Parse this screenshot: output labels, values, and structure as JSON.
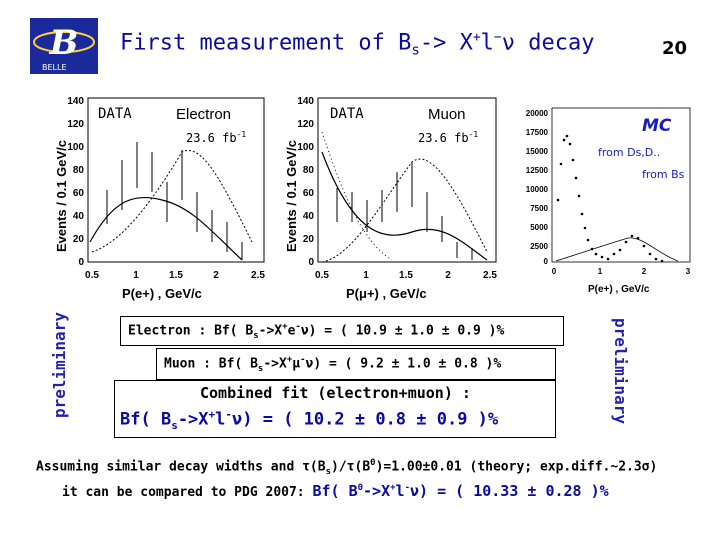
{
  "header": {
    "title_pre": "First measurement of  B",
    "title_sub": "s",
    "title_mid": "-> X",
    "title_sup1": "+",
    "title_l": "l",
    "title_sup2": "−",
    "title_post": "ν  decay",
    "slide_number": "20",
    "logo_text": "BELLE"
  },
  "panels": {
    "electron": {
      "data_label": "DATA",
      "channel": "Electron",
      "lumi": "23.6 fb",
      "lumi_sup": "-1",
      "y_axis_label": "Events / 0.1 GeV/c",
      "x_axis_label": "P(e+) ,  GeV/c",
      "y_ticks": [
        "140",
        "120",
        "100",
        "80",
        "60",
        "40",
        "20",
        "0"
      ],
      "x_ticks": [
        "0.5",
        "1",
        "1.5",
        "2",
        "2.5"
      ]
    },
    "muon": {
      "data_label": "DATA",
      "channel": "Muon",
      "lumi": "23.6 fb",
      "lumi_sup": "-1",
      "y_axis_label": "Events / 0.1 GeV/c",
      "x_axis_label": "P(μ+) ,  GeV/c",
      "y_ticks": [
        "140",
        "120",
        "100",
        "80",
        "60",
        "40",
        "20",
        "0"
      ],
      "x_ticks": [
        "0.5",
        "1",
        "1.5",
        "2",
        "2.5"
      ]
    },
    "mc": {
      "label": "MC",
      "from_ds": "from Ds,D..",
      "from_bs": "from Bs",
      "x_axis_label": "P(e+) ,  GeV/c",
      "y_ticks": [
        "20000",
        "17500",
        "15000",
        "12500",
        "10000",
        "7500",
        "5000",
        "2500",
        "0"
      ],
      "x_ticks": [
        "0",
        "1",
        "2",
        "3"
      ]
    }
  },
  "preliminary_left": "preliminary",
  "preliminary_right": "preliminary",
  "results": {
    "electron": {
      "prefix": "Electron :  Bf( B",
      "sub": "s",
      "mid": "->X",
      "sup1": "+",
      "lep": "e",
      "sup2": "-",
      "post": "ν) = ( 10.9 ± 1.0 ± 0.9 )%"
    },
    "muon": {
      "prefix": "Muon :  Bf( B",
      "sub": "s",
      "mid": "->X",
      "sup1": "+",
      "lep": "μ",
      "sup2": "-",
      "post": "ν) = ( 9.2 ± 1.0 ± 0.8 )%"
    },
    "combined_label": "Combined fit (electron+muon) :",
    "combined": {
      "prefix": "Bf( B",
      "sub": "s",
      "mid": "->X",
      "sup1": "+",
      "lep": "l",
      "sup2": "-",
      "post": "ν) = ( 10.2 ± 0.8 ± 0.9 )%"
    }
  },
  "footer": {
    "line1_a": "Assuming similar decay widths and τ(B",
    "line1_sub": "s",
    "line1_b": ")/τ(B",
    "line1_sup": "0",
    "line1_c": ")=1.00±0.01 (theory; exp.diff.~2.3σ)",
    "line2_a": "it can be compared to PDG 2007: ",
    "line2_b": "Bf( B",
    "line2_sup0": "0",
    "line2_c": "->X",
    "line2_sup1": "+",
    "line2_d": "l",
    "line2_sup2": "-",
    "line2_e": "ν) = ( 10.33 ± 0.28 )%"
  }
}
